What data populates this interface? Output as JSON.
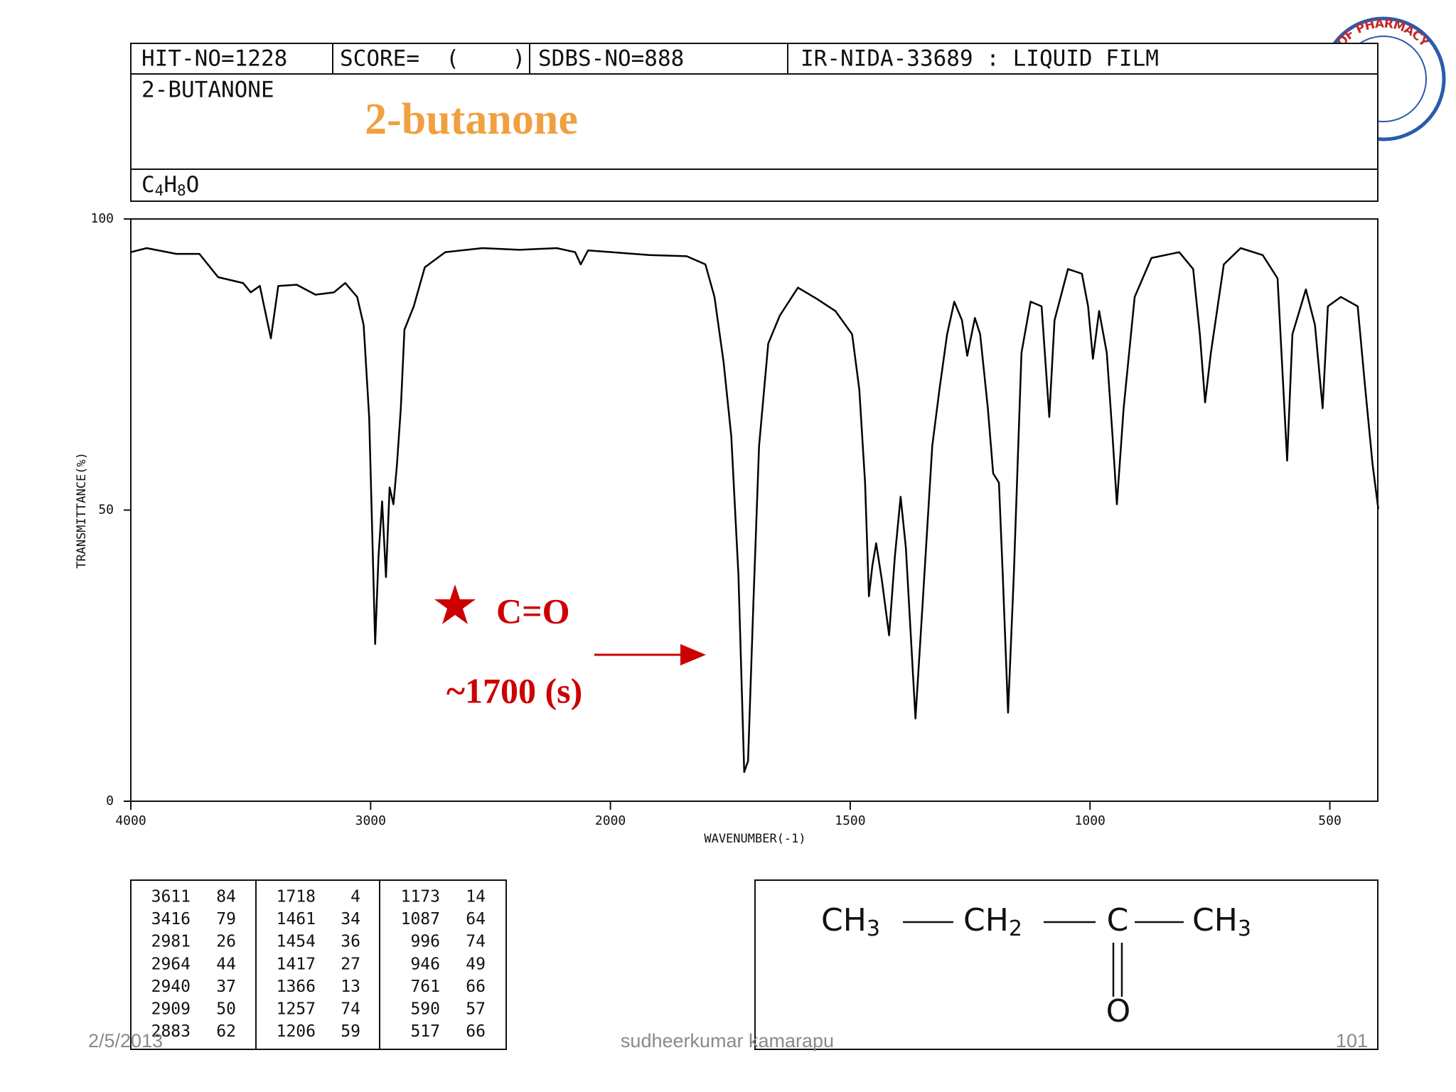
{
  "chart_data": {
    "type": "line",
    "y_label": "TRANSMITTANCE(%)",
    "x_label": "WAVENUMBER(-1)",
    "xlim": [
      4000,
      400
    ],
    "ylim": [
      0,
      100
    ],
    "xticks": [
      4000,
      3000,
      2000,
      1500,
      1000,
      500
    ],
    "yticks": [
      0,
      50,
      100
    ],
    "color": "#000000",
    "x": [
      4000,
      3934,
      3810,
      3714,
      3636,
      3532,
      3500,
      3462,
      3416,
      3385,
      3308,
      3230,
      3153,
      3106,
      3056,
      3029,
      3006,
      2981,
      2967,
      2952,
      2936,
      2921,
      2905,
      2890,
      2874,
      2859,
      2820,
      2774,
      2689,
      2534,
      2379,
      2224,
      2147,
      2124,
      2093,
      1996,
      1919,
      1841,
      1802,
      1783,
      1764,
      1748,
      1733,
      1721,
      1713,
      1702,
      1690,
      1671,
      1647,
      1609,
      1570,
      1531,
      1496,
      1481,
      1469,
      1461,
      1454,
      1446,
      1434,
      1419,
      1407,
      1395,
      1384,
      1364,
      1349,
      1329,
      1314,
      1298,
      1283,
      1267,
      1256,
      1240,
      1229,
      1213,
      1202,
      1190,
      1182,
      1171,
      1159,
      1143,
      1124,
      1101,
      1085,
      1074,
      1046,
      1017,
      1004,
      994,
      981,
      965,
      953,
      944,
      930,
      907,
      872,
      814,
      785,
      771,
      760,
      748,
      721,
      686,
      640,
      609,
      589,
      578,
      550,
      531,
      515,
      504,
      477,
      442,
      426,
      411,
      399
    ],
    "values": [
      94.3,
      95,
      94,
      94,
      90,
      89,
      87.4,
      88.5,
      79.5,
      88.5,
      88.7,
      87,
      87.4,
      89,
      86.6,
      81.8,
      65.9,
      27,
      42,
      51.5,
      38.5,
      53.9,
      51,
      57.9,
      67.5,
      81,
      85,
      91.7,
      94.3,
      95,
      94.7,
      95,
      94.3,
      92.2,
      94.6,
      94.3,
      93.8,
      93.6,
      92.2,
      86.6,
      75.4,
      62.7,
      38.8,
      5,
      6.9,
      34,
      61,
      78.6,
      83.4,
      88.2,
      86.3,
      84.2,
      80.2,
      70.7,
      54.7,
      35.2,
      40.4,
      44.3,
      38,
      28.5,
      42,
      52.3,
      43.5,
      14.2,
      34,
      61,
      70.7,
      80.2,
      85.8,
      82.6,
      76.5,
      83,
      80.2,
      67.5,
      56.3,
      54.7,
      38.8,
      15.2,
      38.8,
      77,
      85.8,
      85,
      66,
      82.6,
      91.4,
      90.6,
      85,
      76,
      84.2,
      77,
      62.7,
      51,
      67.5,
      86.6,
      93.3,
      94.3,
      91.4,
      80.2,
      68.5,
      77,
      92.2,
      95,
      93.8,
      89.8,
      58.5,
      80.2,
      87.9,
      81.8,
      67.5,
      85,
      86.6,
      85,
      70.7,
      57.9,
      50.2
    ],
    "annotations": {
      "bond": "C=O",
      "band": "~1700 (s)",
      "color": "#cc0000"
    }
  },
  "header": {
    "hit_no": "HIT-NO=1228",
    "score": "SCORE=  (    )",
    "sdbs_no": "SDBS-NO=888",
    "source": "IR-NIDA-33689 : LIQUID FILM",
    "compound": "2-BUTANONE",
    "title": "2-butanone",
    "formula": [
      "C",
      "4",
      "H",
      "8",
      "O"
    ]
  },
  "peak_table": [
    [
      [
        3611,
        84
      ],
      [
        3416,
        79
      ],
      [
        2981,
        26
      ],
      [
        2964,
        44
      ],
      [
        2940,
        37
      ],
      [
        2909,
        50
      ],
      [
        2883,
        62
      ]
    ],
    [
      [
        1718,
        4
      ],
      [
        1461,
        34
      ],
      [
        1454,
        36
      ],
      [
        1417,
        27
      ],
      [
        1366,
        13
      ],
      [
        1257,
        74
      ],
      [
        1206,
        59
      ]
    ],
    [
      [
        1173,
        14
      ],
      [
        1087,
        64
      ],
      [
        996,
        74
      ],
      [
        946,
        49
      ],
      [
        761,
        66
      ],
      [
        590,
        57
      ],
      [
        517,
        66
      ]
    ]
  ],
  "structure": {
    "groups": [
      [
        "CH",
        "3"
      ],
      [
        "CH",
        "2"
      ],
      [
        "C"
      ],
      [
        "CH",
        "3"
      ]
    ],
    "oxygen": "O"
  },
  "logo_text": "COLLEGE OF PHARMACY",
  "footer": {
    "date": "2/5/2013",
    "author": "sudheerkumar kamarapu",
    "page": "101"
  }
}
